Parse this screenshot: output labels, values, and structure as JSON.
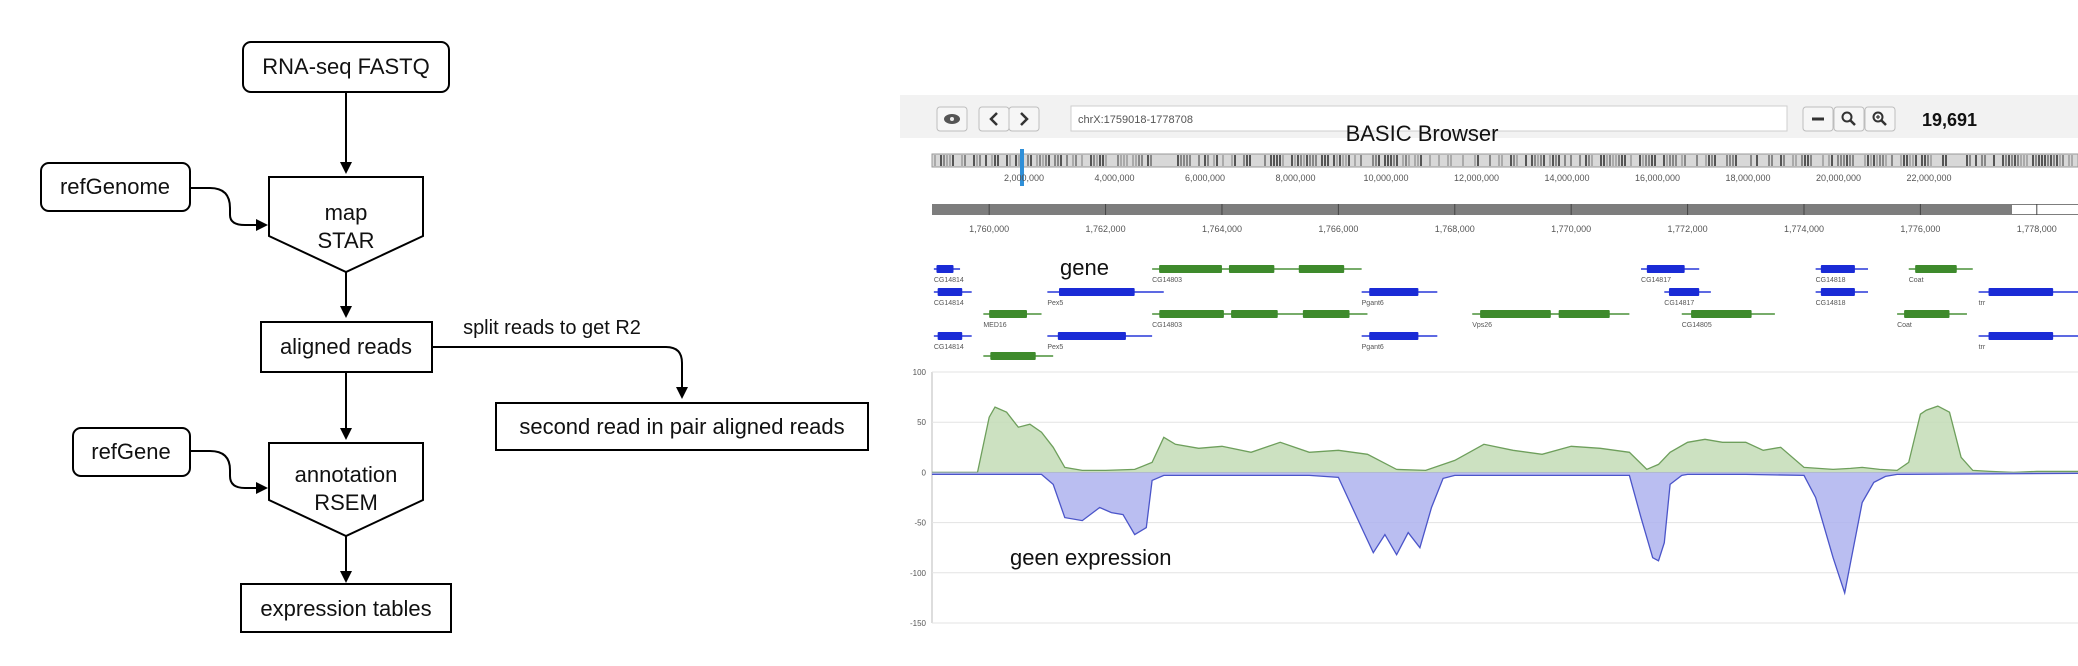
{
  "flowchart": {
    "nodes": {
      "fastq": "RNA-seq FASTQ",
      "ref_genome": "refGenome",
      "map_1": "map",
      "map_2": "STAR",
      "aligned": "aligned reads",
      "ref_gene": "refGene",
      "annot_1": "annotation",
      "annot_2": "RSEM",
      "expr": "expression tables",
      "second": "second read in pair aligned reads"
    },
    "edge_label": "split reads to get R2"
  },
  "browser": {
    "toolbar": {
      "view_icon": "eye-icon",
      "back_icon": "chevron-left-icon",
      "forward_icon": "chevron-right-icon",
      "locus": "chrX:1759018-1778708",
      "zoom_fit_icon": "minus-icon",
      "zoom_out_icon": "zoom-out-icon",
      "zoom_in_icon": "zoom-in-icon",
      "width_readout": "19,691"
    },
    "title": "BASIC Browser",
    "overview_ticks": [
      "2,000,000",
      "4,000,000",
      "6,000,000",
      "8,000,000",
      "10,000,000",
      "12,000,000",
      "14,000,000",
      "16,000,000",
      "18,000,000",
      "20,000,000",
      "22,000,000"
    ],
    "region_ticks": [
      "1,760,000",
      "1,762,000",
      "1,764,000",
      "1,766,000",
      "1,768,000",
      "1,770,000",
      "1,772,000",
      "1,774,000",
      "1,776,000",
      "1,778,000"
    ],
    "gene_label": "gene",
    "expression_label": "geen expression",
    "y_axis_ticks": [
      "100",
      "50",
      "0",
      "-50",
      "-100",
      "-150"
    ],
    "y_range": [
      -150,
      100
    ],
    "colors": {
      "gene_blue": "#1a2bd6",
      "gene_green": "#3e8a2c",
      "plus_fill": "#c3dcb6",
      "plus_line": "#6e9f5c",
      "minus_fill": "#aeb3ee",
      "minus_line": "#4b55c9"
    },
    "genes": [
      {
        "label": "CG14814",
        "strand": "-",
        "color": "blue",
        "start": 1759050,
        "end": 1759500,
        "row": 0
      },
      {
        "label": "CG14803",
        "strand": "+",
        "color": "green",
        "start": 1762800,
        "end": 1766400,
        "row": 0
      },
      {
        "label": "CG14817",
        "strand": "-",
        "color": "blue",
        "start": 1771200,
        "end": 1772200,
        "row": 0
      },
      {
        "label": "CG14818",
        "strand": "-",
        "color": "blue",
        "start": 1774200,
        "end": 1775100,
        "row": 0
      },
      {
        "label": "Coat",
        "strand": "+",
        "color": "green",
        "start": 1775800,
        "end": 1776900,
        "row": 0
      },
      {
        "label": "CG14814",
        "strand": "-",
        "color": "blue",
        "start": 1759050,
        "end": 1759700,
        "row": 1
      },
      {
        "label": "Pex5",
        "strand": "-",
        "color": "blue",
        "start": 1761000,
        "end": 1763000,
        "row": 1
      },
      {
        "label": "Pgant6",
        "strand": "-",
        "color": "blue",
        "start": 1766400,
        "end": 1767700,
        "row": 1
      },
      {
        "label": "CG14817",
        "strand": "-",
        "color": "blue",
        "start": 1771600,
        "end": 1772400,
        "row": 1
      },
      {
        "label": "CG14818",
        "strand": "-",
        "color": "blue",
        "start": 1774200,
        "end": 1775100,
        "row": 1
      },
      {
        "label": "trr",
        "strand": "-",
        "color": "blue",
        "start": 1777000,
        "end": 1778708,
        "row": 1
      },
      {
        "label": "MED16",
        "strand": "+",
        "color": "green",
        "start": 1759900,
        "end": 1760900,
        "row": 2
      },
      {
        "label": "CG14803",
        "strand": "+",
        "color": "green",
        "start": 1762800,
        "end": 1766500,
        "row": 2
      },
      {
        "label": "Vps26",
        "strand": "+",
        "color": "green",
        "start": 1768300,
        "end": 1771000,
        "row": 2
      },
      {
        "label": "CG14805",
        "strand": "+",
        "color": "green",
        "start": 1771900,
        "end": 1773500,
        "row": 2
      },
      {
        "label": "Coat",
        "strand": "+",
        "color": "green",
        "start": 1775600,
        "end": 1776800,
        "row": 2
      },
      {
        "label": "CG14814",
        "strand": "-",
        "color": "blue",
        "start": 1759050,
        "end": 1759700,
        "row": 3
      },
      {
        "label": "Pex5",
        "strand": "-",
        "color": "blue",
        "start": 1761000,
        "end": 1762800,
        "row": 3
      },
      {
        "label": "Pgant6",
        "strand": "-",
        "color": "blue",
        "start": 1766400,
        "end": 1767700,
        "row": 3
      },
      {
        "label": "trr",
        "strand": "-",
        "color": "blue",
        "start": 1777000,
        "end": 1778708,
        "row": 3
      },
      {
        "label": "",
        "strand": "+",
        "color": "green",
        "start": 1759900,
        "end": 1761100,
        "row": 4
      }
    ],
    "chart_data": {
      "type": "area",
      "x_range": [
        1759018,
        1778708
      ],
      "ylim": [
        -150,
        100
      ],
      "series": [
        {
          "sign": "plus",
          "x": [
            1759018,
            1759800,
            1760000,
            1760100,
            1760300,
            1760500,
            1760700,
            1760900,
            1761100,
            1761300,
            1761600,
            1762000,
            1762500,
            1762800,
            1763000,
            1763200,
            1763600,
            1764000,
            1764500,
            1765000,
            1765500,
            1766000,
            1766500,
            1767000,
            1767500,
            1768000,
            1768500,
            1769000,
            1769500,
            1770000,
            1770500,
            1771000,
            1771300,
            1771500,
            1771700,
            1772000,
            1772300,
            1772600,
            1773000,
            1773300,
            1773600,
            1774000,
            1774500,
            1774800,
            1775000,
            1775300,
            1775600,
            1775800,
            1776000,
            1776100,
            1776300,
            1776500,
            1776700,
            1776900,
            1777200,
            1777600,
            1778000,
            1778708
          ],
          "y": [
            0,
            0,
            55,
            65,
            60,
            45,
            48,
            40,
            25,
            5,
            2,
            2,
            3,
            10,
            35,
            28,
            24,
            26,
            20,
            30,
            20,
            22,
            18,
            3,
            2,
            12,
            28,
            22,
            18,
            26,
            24,
            20,
            3,
            8,
            20,
            30,
            33,
            30,
            30,
            22,
            25,
            5,
            3,
            4,
            5,
            3,
            2,
            10,
            58,
            62,
            66,
            60,
            15,
            2,
            1,
            0,
            1,
            1
          ]
        },
        {
          "sign": "minus",
          "x": [
            1759018,
            1760900,
            1761100,
            1761300,
            1761600,
            1761900,
            1762100,
            1762300,
            1762500,
            1762700,
            1762800,
            1763000,
            1765500,
            1766000,
            1766200,
            1766400,
            1766600,
            1766800,
            1767000,
            1767200,
            1767400,
            1767600,
            1767800,
            1768000,
            1771000,
            1771200,
            1771400,
            1771500,
            1771600,
            1771700,
            1771900,
            1772000,
            1773000,
            1774000,
            1774200,
            1774500,
            1774700,
            1774800,
            1775000,
            1775200,
            1775400,
            1775600,
            1778708
          ],
          "y": [
            -2,
            -2,
            -12,
            -45,
            -48,
            -35,
            -40,
            -42,
            -62,
            -55,
            -8,
            -3,
            -3,
            -5,
            -30,
            -55,
            -80,
            -62,
            -82,
            -60,
            -75,
            -35,
            -6,
            -3,
            -3,
            -45,
            -85,
            -88,
            -70,
            -12,
            -3,
            -2,
            -2,
            -3,
            -25,
            -85,
            -120,
            -90,
            -30,
            -10,
            -4,
            -2,
            -1
          ]
        }
      ]
    }
  }
}
